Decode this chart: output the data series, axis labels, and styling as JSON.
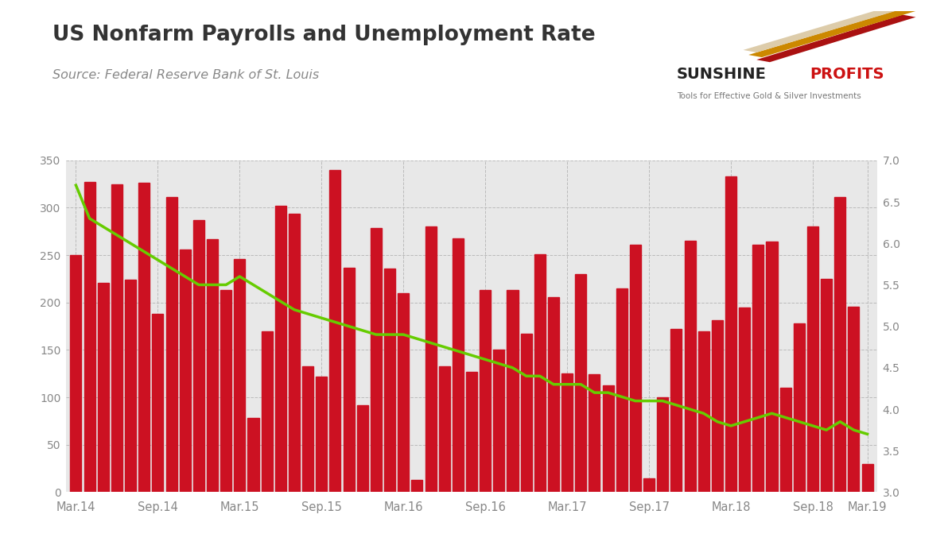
{
  "title": "US Nonfarm Payrolls and Unemployment Rate",
  "source": "Source: Federal Reserve Bank of St. Louis",
  "bar_color": "#cc1122",
  "line_color": "#66cc00",
  "plot_bg_color": "#e8e8e8",
  "fig_bg_color": "#ffffff",
  "grid_color": "#bbbbbb",
  "tick_color": "#888888",
  "ylim_left": [
    0,
    350
  ],
  "ylim_right": [
    3.0,
    7.0
  ],
  "yticks_left": [
    0,
    50,
    100,
    150,
    200,
    250,
    300,
    350
  ],
  "yticks_right": [
    3.0,
    3.5,
    4.0,
    4.5,
    5.0,
    5.5,
    6.0,
    6.5,
    7.0
  ],
  "xtick_labels": [
    "Mar.14",
    "Sep.14",
    "Mar.15",
    "Sep.15",
    "Mar.16",
    "Sep.16",
    "Mar.17",
    "Sep.17",
    "Mar.18",
    "Sep.18",
    "Mar.19"
  ],
  "xtick_positions_indices": [
    0,
    6,
    12,
    18,
    24,
    30,
    36,
    42,
    48,
    54,
    58
  ],
  "nonfarm_payrolls": [
    250,
    327,
    221,
    325,
    224,
    326,
    188,
    311,
    256,
    287,
    267,
    213,
    246,
    78,
    170,
    302,
    294,
    133,
    122,
    340,
    237,
    92,
    279,
    236,
    210,
    13,
    280,
    133,
    268,
    127,
    213,
    150,
    213,
    167,
    251,
    206,
    125,
    230,
    124,
    113,
    215,
    261,
    15,
    100,
    172,
    265,
    170,
    181,
    333,
    195,
    261,
    264,
    110,
    178,
    280,
    225,
    311,
    196,
    30
  ],
  "unemployment_rate": [
    6.7,
    6.3,
    6.2,
    6.1,
    6.0,
    5.9,
    5.8,
    5.7,
    5.6,
    5.5,
    5.5,
    5.5,
    5.6,
    5.5,
    5.4,
    5.3,
    5.2,
    5.15,
    5.1,
    5.05,
    5.0,
    4.95,
    4.9,
    4.9,
    4.9,
    4.85,
    4.8,
    4.75,
    4.7,
    4.65,
    4.6,
    4.55,
    4.5,
    4.4,
    4.4,
    4.3,
    4.3,
    4.3,
    4.2,
    4.2,
    4.15,
    4.1,
    4.1,
    4.1,
    4.05,
    4.0,
    3.95,
    3.85,
    3.8,
    3.85,
    3.9,
    3.95,
    3.9,
    3.85,
    3.8,
    3.75,
    3.85,
    3.75,
    3.7
  ],
  "logo_text_sunshine": "SUNSHINE",
  "logo_text_profits": "PROFITS",
  "logo_subtext": "Tools for Effective Gold & Silver Investments"
}
